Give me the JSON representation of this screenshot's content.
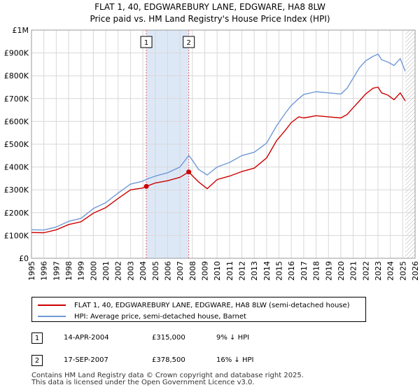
{
  "colors": {
    "price_line": "#cc0000",
    "hpi_line": "#6f99d6",
    "shade": "#dde8f7",
    "grid": "#d8d8d8",
    "sale_vline": "#e06060"
  },
  "chart_data": {
    "type": "line",
    "title": "FLAT 1, 40, EDGWAREBURY LANE, EDGWARE, HA8 8LW",
    "subtitle": "Price paid vs. HM Land Registry's House Price Index (HPI)",
    "xlim": [
      1995,
      2026
    ],
    "ylim": [
      0,
      1000000
    ],
    "x_ticks": [
      1995,
      1996,
      1997,
      1998,
      1999,
      2000,
      2001,
      2002,
      2003,
      2004,
      2005,
      2006,
      2007,
      2008,
      2009,
      2010,
      2011,
      2012,
      2013,
      2014,
      2015,
      2016,
      2017,
      2018,
      2019,
      2020,
      2021,
      2022,
      2023,
      2024,
      2025,
      2026
    ],
    "y_ticks": [
      {
        "value": 0,
        "label": "£0"
      },
      {
        "value": 100000,
        "label": "£100K"
      },
      {
        "value": 200000,
        "label": "£200K"
      },
      {
        "value": 300000,
        "label": "£300K"
      },
      {
        "value": 400000,
        "label": "£400K"
      },
      {
        "value": 500000,
        "label": "£500K"
      },
      {
        "value": 600000,
        "label": "£600K"
      },
      {
        "value": 700000,
        "label": "£700K"
      },
      {
        "value": 800000,
        "label": "£800K"
      },
      {
        "value": 900000,
        "label": "£900K"
      },
      {
        "value": 1000000,
        "label": "£1M"
      }
    ],
    "shaded_span": [
      2004.28,
      2007.71
    ],
    "hatched_from": 2025.2,
    "series": [
      {
        "name": "FLAT 1, 40, EDGWAREBURY LANE, EDGWARE, HA8 8LW (semi-detached house)",
        "x": [
          1995.0,
          1996.0,
          1997.0,
          1998.0,
          1999.0,
          2000.0,
          2001.0,
          2002.0,
          2003.0,
          2004.0,
          2004.28,
          2005.0,
          2006.0,
          2007.0,
          2007.71,
          2008.0,
          2008.5,
          2009.2,
          2010.0,
          2011.0,
          2012.0,
          2013.0,
          2014.0,
          2014.8,
          2015.5,
          2016.0,
          2016.6,
          2017.0,
          2018.0,
          2019.0,
          2020.0,
          2020.5,
          2021.0,
          2021.5,
          2022.0,
          2022.6,
          2023.0,
          2023.3,
          2023.8,
          2024.3,
          2024.8,
          2025.2
        ],
        "values": [
          113000,
          112000,
          125000,
          148000,
          160000,
          198000,
          222000,
          262000,
          300000,
          308000,
          315000,
          330000,
          340000,
          355000,
          378500,
          362000,
          335000,
          305000,
          345000,
          360000,
          380000,
          395000,
          440000,
          515000,
          560000,
          595000,
          620000,
          615000,
          625000,
          620000,
          615000,
          630000,
          660000,
          690000,
          720000,
          745000,
          750000,
          725000,
          715000,
          695000,
          725000,
          690000
        ]
      },
      {
        "name": "HPI: Average price, semi-detached house, Barnet",
        "x": [
          1995.0,
          1996.0,
          1997.0,
          1998.0,
          1999.0,
          2000.0,
          2001.0,
          2002.0,
          2003.0,
          2004.0,
          2004.28,
          2005.0,
          2006.0,
          2007.0,
          2007.71,
          2008.0,
          2008.5,
          2009.2,
          2010.0,
          2011.0,
          2012.0,
          2013.0,
          2014.0,
          2014.8,
          2015.5,
          2016.0,
          2016.6,
          2017.0,
          2018.0,
          2019.0,
          2020.0,
          2020.5,
          2021.0,
          2021.5,
          2022.0,
          2022.6,
          2023.0,
          2023.3,
          2023.8,
          2024.3,
          2024.8,
          2025.2
        ],
        "values": [
          125000,
          124000,
          137000,
          162000,
          175000,
          218000,
          244000,
          286000,
          325000,
          338000,
          346000,
          360000,
          375000,
          400000,
          451000,
          430000,
          390000,
          365000,
          400000,
          420000,
          450000,
          465000,
          505000,
          580000,
          635000,
          670000,
          700000,
          718000,
          730000,
          725000,
          720000,
          745000,
          790000,
          835000,
          865000,
          885000,
          895000,
          870000,
          860000,
          845000,
          875000,
          820000
        ]
      }
    ],
    "annotations": [
      {
        "label": "1",
        "x": 2004.28,
        "y": 315000
      },
      {
        "label": "2",
        "x": 2007.71,
        "y": 378500
      }
    ]
  },
  "legend": {
    "price_label": "FLAT 1, 40, EDGWAREBURY LANE, EDGWARE, HA8 8LW (semi-detached house)",
    "hpi_label": "HPI: Average price, semi-detached house, Barnet"
  },
  "sales": [
    {
      "num": "1",
      "date": "14-APR-2004",
      "price": "£315,000",
      "hpi": "9% ↓ HPI"
    },
    {
      "num": "2",
      "date": "17-SEP-2007",
      "price": "£378,500",
      "hpi": "16% ↓ HPI"
    }
  ],
  "footer": {
    "line1": "Contains HM Land Registry data © Crown copyright and database right 2025.",
    "line2": "This data is licensed under the Open Government Licence v3.0."
  }
}
